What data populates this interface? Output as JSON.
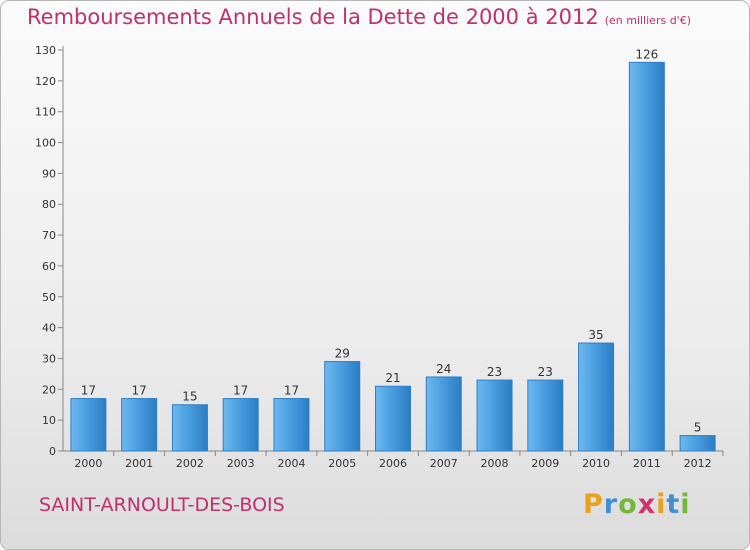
{
  "chart_data": {
    "type": "bar",
    "title": "Remboursements Annuels de la Dette de 2000 à 2012",
    "unit": "(en milliers d'€)",
    "categories": [
      "2000",
      "2001",
      "2002",
      "2003",
      "2004",
      "2005",
      "2006",
      "2007",
      "2008",
      "2009",
      "2010",
      "2011",
      "2012"
    ],
    "values": [
      17,
      17,
      15,
      17,
      17,
      29,
      21,
      24,
      23,
      23,
      35,
      126,
      5
    ],
    "ylim": [
      0,
      130
    ],
    "yticks": [
      0,
      10,
      20,
      30,
      40,
      50,
      60,
      70,
      80,
      90,
      100,
      110,
      120,
      130
    ],
    "grid": false,
    "bar_color": "#4a9fe0",
    "title_color": "#c0306a"
  },
  "commune": "SAINT-ARNOULT-DES-BOIS",
  "logo": {
    "letters": [
      "P",
      "r",
      "o",
      "x",
      "i",
      "t",
      "i"
    ],
    "colors": [
      "#e8a21c",
      "#3f8fd4",
      "#74b83b",
      "#d4326d",
      "#e8a21c",
      "#3f8fd4",
      "#74b83b"
    ]
  }
}
